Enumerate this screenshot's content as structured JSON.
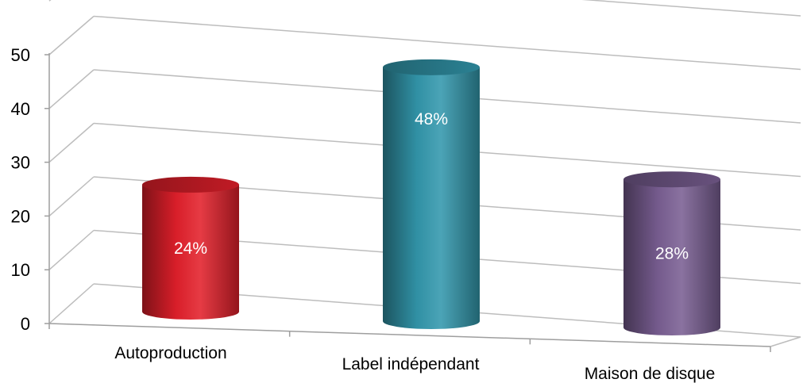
{
  "chart_data": {
    "type": "bar",
    "categories": [
      "Autoproduction",
      "Label indépendant",
      "Maison de disque"
    ],
    "values": [
      24,
      48,
      28
    ],
    "data_labels": [
      "24%",
      "48%",
      "28%"
    ],
    "yticks": [
      "0",
      "10",
      "20",
      "30",
      "40",
      "50"
    ],
    "ylim": [
      0,
      50
    ],
    "grid": true,
    "style": "3d-cylinder",
    "colors": [
      "#e3202b",
      "#3398ad",
      "#7a5f93"
    ]
  }
}
